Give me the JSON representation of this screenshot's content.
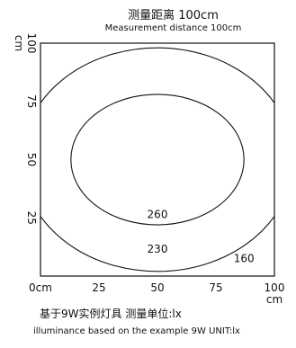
{
  "title": "测量距离 100cm",
  "subtitle": "Measurement distance 100cm",
  "caption_zh": "基于9W实例灯具    测量单位:lx",
  "caption_en": "illuminance based on the example 9W  UNIT:lx",
  "chart_data": {
    "type": "contour",
    "xlim": [
      0,
      100
    ],
    "ylim": [
      0,
      100
    ],
    "x_ticks": [
      0,
      25,
      50,
      75,
      100
    ],
    "x_tick_labels": [
      "0cm",
      "25",
      "50",
      "75",
      "100"
    ],
    "y_ticks": [
      25,
      50,
      75,
      100
    ],
    "y_tick_labels": [
      "25",
      "50",
      "75",
      "100"
    ],
    "x_unit": "cm",
    "y_unit": "cm",
    "center": [
      50,
      50
    ],
    "unit": "lx",
    "contours": [
      {
        "level": 260,
        "label": "260",
        "rx": 37,
        "ry": 28
      },
      {
        "level": 230,
        "label": "230",
        "rx": 58,
        "ry": 48
      },
      {
        "level": 160,
        "label": "160",
        "rx": 76,
        "ry": 72
      }
    ],
    "line_color": "#111111",
    "background": "#ffffff"
  }
}
